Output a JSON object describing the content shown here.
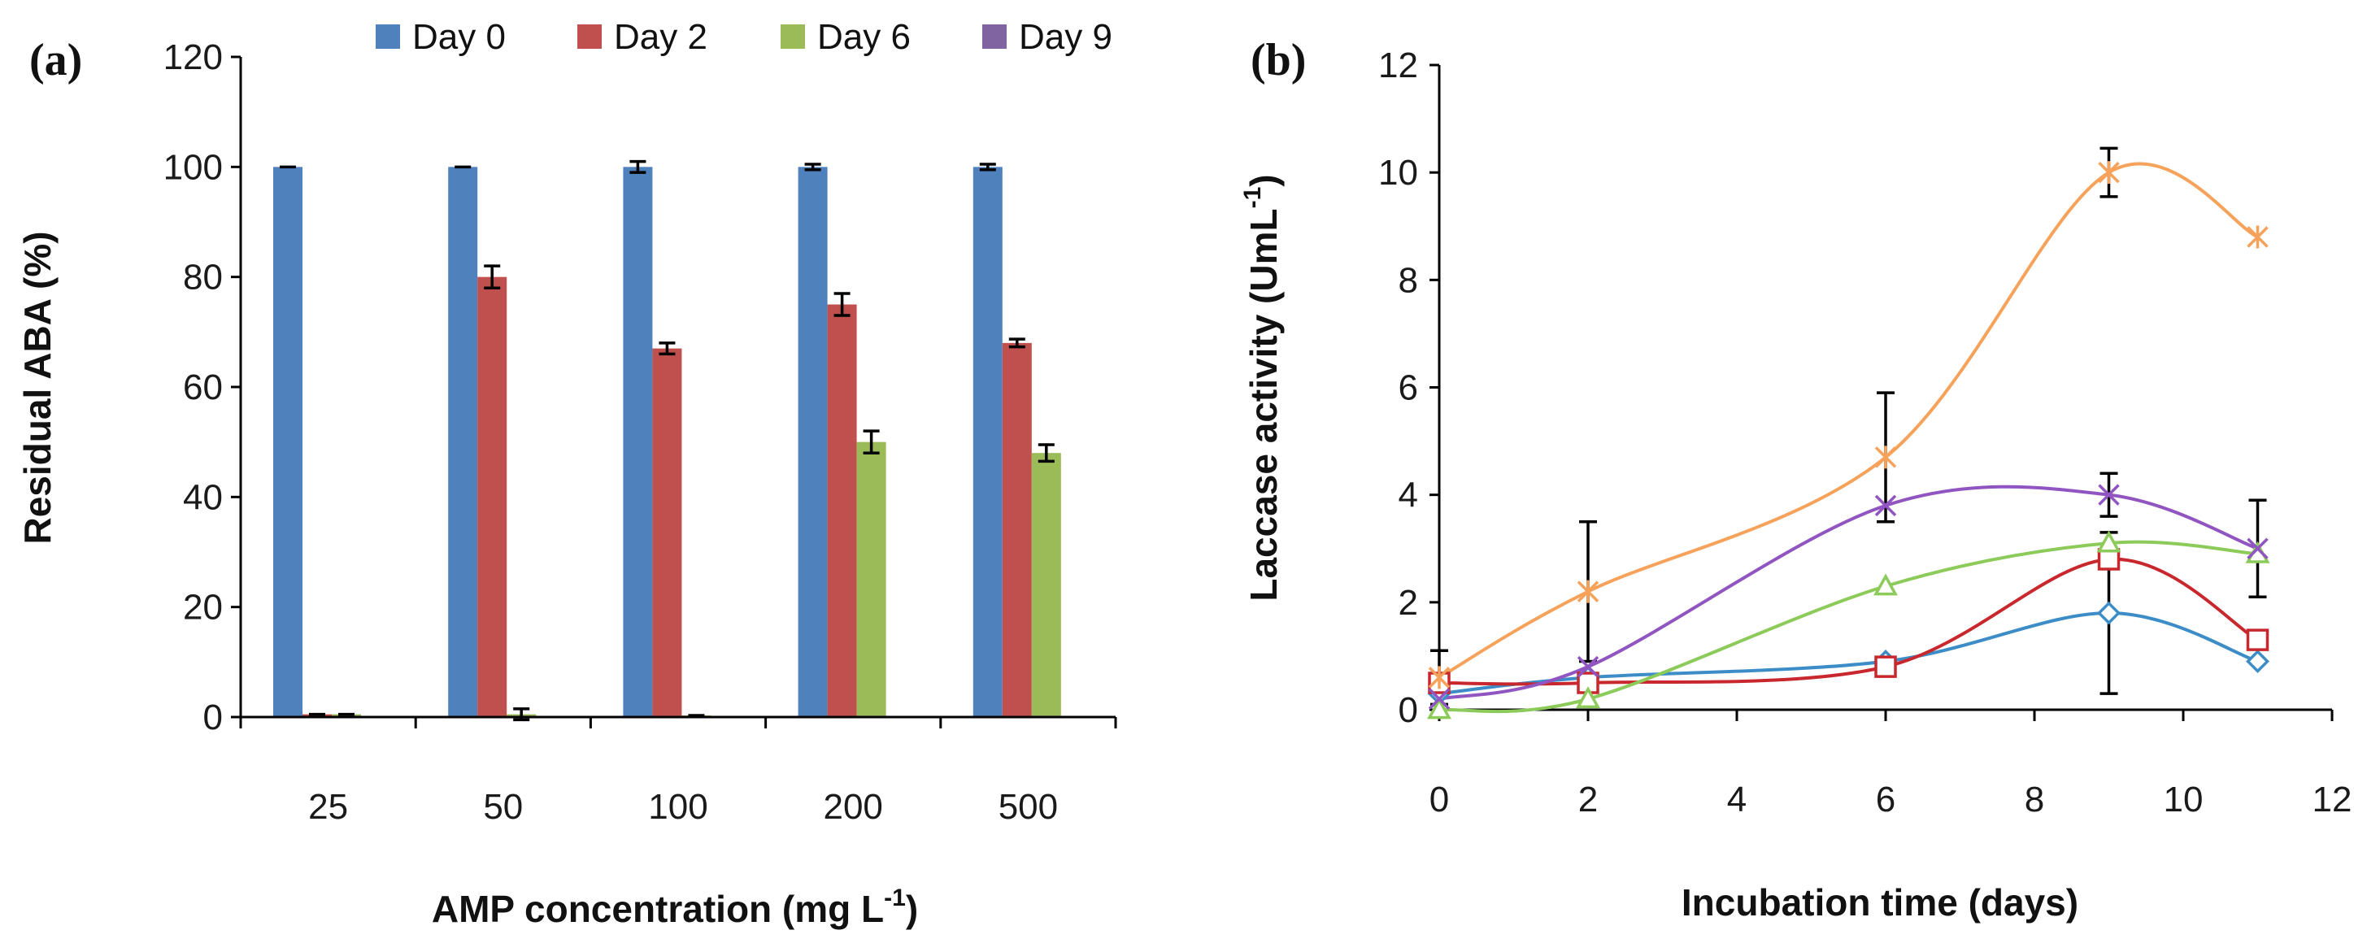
{
  "chart_data": [
    {
      "type": "bar",
      "panel": "(a)",
      "xlabel": "AMP  concentration (mg L",
      "xlabel_sup": "-1",
      "xlabel_end": ")",
      "ylabel": "Residual ABA (%)",
      "ylim": [
        0,
        120
      ],
      "yticks": [
        0,
        20,
        40,
        60,
        80,
        100,
        120
      ],
      "categories": [
        "25",
        "50",
        "100",
        "200",
        "500"
      ],
      "legend_position": "top",
      "series": [
        {
          "name": "Day 0",
          "color": "#4F81BD",
          "values": [
            100,
            100,
            100,
            100,
            100
          ],
          "errors": [
            0,
            0,
            1,
            0.5,
            0.5
          ]
        },
        {
          "name": "Day 2",
          "color": "#C0504D",
          "values": [
            0.5,
            80,
            67,
            75,
            68
          ],
          "errors": [
            0,
            2,
            1,
            2,
            0.7
          ]
        },
        {
          "name": "Day 6",
          "color": "#9BBB59",
          "values": [
            0.5,
            0.5,
            0.3,
            50,
            48
          ],
          "errors": [
            0,
            1,
            0,
            2,
            1.5
          ]
        },
        {
          "name": "Day 9",
          "color": "#8064A2",
          "values": [
            0,
            0,
            0,
            0,
            0
          ],
          "errors": [
            0,
            0,
            0,
            0,
            0
          ]
        }
      ]
    },
    {
      "type": "line",
      "panel": "(b)",
      "xlabel": "Incubation time (days)",
      "ylabel": "Laccase activity (UmL",
      "ylabel_sup": "-1",
      "ylabel_end": ")",
      "xlim": [
        0,
        12
      ],
      "xticks": [
        0,
        2,
        4,
        6,
        8,
        10,
        12
      ],
      "ylim": [
        0,
        12
      ],
      "yticks": [
        0,
        2,
        4,
        6,
        8,
        10,
        12
      ],
      "x": [
        0,
        2,
        6,
        9,
        11
      ],
      "series": [
        {
          "name": "blue diamonds",
          "color": "#3C8DC7",
          "marker": "diamond",
          "values": [
            0.3,
            0.6,
            0.9,
            1.8,
            0.9
          ],
          "errors": [
            0,
            0,
            0,
            1.5,
            0
          ]
        },
        {
          "name": "red squares",
          "color": "#C8282D",
          "marker": "square",
          "values": [
            0.5,
            0.5,
            0.8,
            2.8,
            1.3
          ],
          "errors": [
            0,
            0,
            0,
            0,
            0
          ]
        },
        {
          "name": "green triangles",
          "color": "#8CCB5A",
          "marker": "triangle",
          "values": [
            0.0,
            0.2,
            2.3,
            3.1,
            2.9
          ],
          "errors": [
            0,
            0,
            0,
            0,
            0
          ]
        },
        {
          "name": "purple crosses",
          "color": "#9055C0",
          "marker": "x",
          "values": [
            0.2,
            0.8,
            3.8,
            4.0,
            3.0
          ],
          "errors": [
            0,
            0,
            0,
            0.4,
            0.9
          ]
        },
        {
          "name": "orange asterisks",
          "color": "#F6A25A",
          "marker": "asterisk",
          "values": [
            0.6,
            2.2,
            4.7,
            10.0,
            8.8
          ],
          "errors": [
            0.5,
            1.3,
            1.2,
            0.45,
            0
          ]
        }
      ]
    }
  ]
}
